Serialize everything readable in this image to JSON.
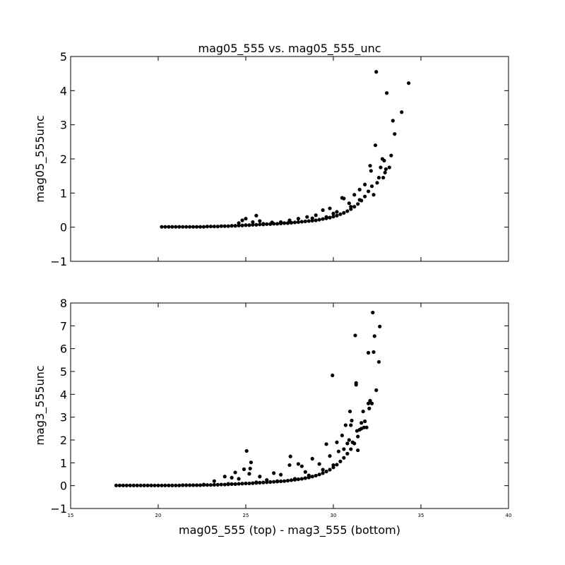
{
  "chart_data": [
    {
      "type": "scatter",
      "title": "mag05_555 vs. mag05_555_unc",
      "ylabel": "mag05_555unc",
      "xlim": [
        15,
        40
      ],
      "ylim": [
        -1,
        5
      ],
      "yticks": [
        "−1",
        "0",
        "1",
        "2",
        "3",
        "4",
        "5"
      ],
      "ytick_values": [
        -1,
        0,
        1,
        2,
        3,
        4,
        5
      ],
      "show_xtick_labels": false,
      "xtick_values": [
        15,
        20,
        25,
        30,
        35,
        40
      ],
      "grid": false,
      "marker_color": "#000000",
      "points": [
        [
          20.2,
          0.01
        ],
        [
          20.4,
          0.01
        ],
        [
          20.6,
          0.01
        ],
        [
          20.8,
          0.01
        ],
        [
          21.0,
          0.01
        ],
        [
          21.2,
          0.01
        ],
        [
          21.4,
          0.01
        ],
        [
          21.6,
          0.01
        ],
        [
          21.8,
          0.01
        ],
        [
          22.0,
          0.01
        ],
        [
          22.2,
          0.01
        ],
        [
          22.4,
          0.01
        ],
        [
          22.6,
          0.01
        ],
        [
          22.8,
          0.02
        ],
        [
          23.0,
          0.02
        ],
        [
          23.2,
          0.02
        ],
        [
          23.4,
          0.02
        ],
        [
          23.6,
          0.03
        ],
        [
          23.8,
          0.03
        ],
        [
          24.0,
          0.03
        ],
        [
          24.2,
          0.04
        ],
        [
          24.4,
          0.04
        ],
        [
          24.6,
          0.05
        ],
        [
          24.8,
          0.05
        ],
        [
          25.0,
          0.06
        ],
        [
          25.2,
          0.06
        ],
        [
          25.4,
          0.07
        ],
        [
          25.6,
          0.07
        ],
        [
          25.8,
          0.08
        ],
        [
          26.0,
          0.08
        ],
        [
          26.2,
          0.09
        ],
        [
          26.4,
          0.09
        ],
        [
          26.6,
          0.1
        ],
        [
          26.8,
          0.1
        ],
        [
          27.0,
          0.11
        ],
        [
          27.2,
          0.12
        ],
        [
          27.4,
          0.12
        ],
        [
          27.6,
          0.13
        ],
        [
          27.8,
          0.14
        ],
        [
          28.0,
          0.15
        ],
        [
          28.2,
          0.16
        ],
        [
          28.4,
          0.17
        ],
        [
          28.6,
          0.18
        ],
        [
          28.8,
          0.19
        ],
        [
          29.0,
          0.2
        ],
        [
          29.2,
          0.22
        ],
        [
          29.4,
          0.24
        ],
        [
          29.6,
          0.26
        ],
        [
          29.8,
          0.28
        ],
        [
          30.0,
          0.31
        ],
        [
          30.2,
          0.34
        ],
        [
          30.4,
          0.38
        ],
        [
          30.6,
          0.42
        ],
        [
          30.8,
          0.47
        ],
        [
          31.0,
          0.53
        ],
        [
          31.2,
          0.6
        ],
        [
          31.4,
          0.68
        ],
        [
          31.6,
          0.78
        ],
        [
          31.8,
          0.9
        ],
        [
          32.0,
          1.05
        ],
        [
          24.6,
          0.12
        ],
        [
          24.8,
          0.2
        ],
        [
          25.0,
          0.25
        ],
        [
          25.4,
          0.15
        ],
        [
          25.6,
          0.34
        ],
        [
          25.8,
          0.18
        ],
        [
          26.5,
          0.14
        ],
        [
          27.5,
          0.2
        ],
        [
          28.0,
          0.25
        ],
        [
          28.5,
          0.3
        ],
        [
          29.0,
          0.35
        ],
        [
          29.4,
          0.5
        ],
        [
          29.8,
          0.55
        ],
        [
          30.2,
          0.45
        ],
        [
          30.5,
          0.86
        ],
        [
          30.6,
          0.84
        ],
        [
          30.9,
          0.7
        ],
        [
          31.2,
          0.95
        ],
        [
          31.5,
          1.1
        ],
        [
          31.8,
          1.25
        ],
        [
          32.1,
          1.8
        ],
        [
          32.15,
          1.65
        ],
        [
          32.2,
          1.2
        ],
        [
          32.3,
          0.95
        ],
        [
          32.4,
          2.4
        ],
        [
          32.5,
          1.3
        ],
        [
          32.6,
          1.45
        ],
        [
          32.7,
          1.75
        ],
        [
          32.8,
          2.0
        ],
        [
          32.9,
          1.95
        ],
        [
          32.85,
          1.45
        ],
        [
          32.95,
          1.6
        ],
        [
          33.0,
          1.7
        ],
        [
          33.2,
          1.75
        ],
        [
          33.3,
          2.1
        ],
        [
          33.4,
          3.12
        ],
        [
          33.5,
          2.73
        ],
        [
          33.9,
          3.37
        ],
        [
          33.05,
          3.93
        ],
        [
          32.45,
          4.55
        ],
        [
          34.3,
          4.22
        ],
        [
          31.5,
          0.8
        ],
        [
          31.0,
          0.6
        ],
        [
          30.0,
          0.4
        ],
        [
          29.6,
          0.3
        ],
        [
          28.8,
          0.26
        ],
        [
          27.0,
          0.15
        ],
        [
          26.0,
          0.1
        ]
      ]
    },
    {
      "type": "scatter",
      "title": "",
      "xlabel": "mag05_555 (top) - mag3_555 (bottom)",
      "ylabel": "mag3_555unc",
      "xlim": [
        15,
        40
      ],
      "ylim": [
        -1,
        8
      ],
      "xticks": [
        "15",
        "20",
        "25",
        "30",
        "35",
        "40"
      ],
      "xtick_values": [
        15,
        20,
        25,
        30,
        35,
        40
      ],
      "yticks": [
        "−1",
        "0",
        "1",
        "2",
        "3",
        "4",
        "5",
        "6",
        "7",
        "8"
      ],
      "ytick_values": [
        -1,
        0,
        1,
        2,
        3,
        4,
        5,
        6,
        7,
        8
      ],
      "grid": false,
      "marker_color": "#000000",
      "points": [
        [
          17.6,
          0.01
        ],
        [
          17.8,
          0.01
        ],
        [
          18.0,
          0.01
        ],
        [
          18.2,
          0.01
        ],
        [
          18.4,
          0.01
        ],
        [
          18.6,
          0.01
        ],
        [
          18.8,
          0.01
        ],
        [
          19.0,
          0.01
        ],
        [
          19.2,
          0.01
        ],
        [
          19.4,
          0.01
        ],
        [
          19.6,
          0.01
        ],
        [
          19.8,
          0.01
        ],
        [
          20.0,
          0.01
        ],
        [
          20.2,
          0.01
        ],
        [
          20.4,
          0.01
        ],
        [
          20.6,
          0.01
        ],
        [
          20.8,
          0.01
        ],
        [
          21.0,
          0.01
        ],
        [
          21.2,
          0.01
        ],
        [
          21.4,
          0.02
        ],
        [
          21.6,
          0.02
        ],
        [
          21.8,
          0.02
        ],
        [
          22.0,
          0.02
        ],
        [
          22.2,
          0.02
        ],
        [
          22.4,
          0.02
        ],
        [
          22.6,
          0.03
        ],
        [
          22.8,
          0.03
        ],
        [
          23.0,
          0.03
        ],
        [
          23.2,
          0.04
        ],
        [
          23.4,
          0.04
        ],
        [
          23.6,
          0.05
        ],
        [
          23.8,
          0.05
        ],
        [
          24.0,
          0.06
        ],
        [
          24.2,
          0.07
        ],
        [
          24.4,
          0.07
        ],
        [
          24.6,
          0.08
        ],
        [
          24.8,
          0.09
        ],
        [
          25.0,
          0.1
        ],
        [
          25.2,
          0.1
        ],
        [
          25.4,
          0.11
        ],
        [
          25.6,
          0.12
        ],
        [
          25.8,
          0.13
        ],
        [
          26.0,
          0.14
        ],
        [
          26.2,
          0.15
        ],
        [
          26.4,
          0.16
        ],
        [
          26.6,
          0.17
        ],
        [
          26.8,
          0.18
        ],
        [
          27.0,
          0.19
        ],
        [
          27.2,
          0.2
        ],
        [
          27.4,
          0.22
        ],
        [
          27.6,
          0.24
        ],
        [
          27.8,
          0.26
        ],
        [
          28.0,
          0.28
        ],
        [
          28.2,
          0.3
        ],
        [
          28.4,
          0.33
        ],
        [
          28.6,
          0.36
        ],
        [
          28.8,
          0.4
        ],
        [
          29.0,
          0.44
        ],
        [
          29.2,
          0.49
        ],
        [
          29.4,
          0.55
        ],
        [
          29.6,
          0.62
        ],
        [
          29.8,
          0.7
        ],
        [
          30.0,
          0.8
        ],
        [
          30.2,
          0.92
        ],
        [
          30.4,
          1.06
        ],
        [
          30.6,
          1.22
        ],
        [
          30.8,
          1.4
        ],
        [
          31.0,
          1.6
        ],
        [
          31.2,
          1.85
        ],
        [
          31.4,
          2.15
        ],
        [
          23.2,
          0.2
        ],
        [
          23.8,
          0.4
        ],
        [
          24.2,
          0.35
        ],
        [
          24.4,
          0.58
        ],
        [
          24.6,
          0.3
        ],
        [
          24.9,
          0.72
        ],
        [
          25.05,
          1.52
        ],
        [
          25.2,
          0.52
        ],
        [
          25.25,
          0.75
        ],
        [
          25.3,
          1.02
        ],
        [
          25.8,
          0.4
        ],
        [
          26.2,
          0.25
        ],
        [
          26.6,
          0.55
        ],
        [
          27.0,
          0.48
        ],
        [
          27.5,
          0.9
        ],
        [
          27.55,
          1.28
        ],
        [
          28.0,
          0.95
        ],
        [
          28.2,
          0.85
        ],
        [
          28.4,
          0.6
        ],
        [
          28.8,
          1.18
        ],
        [
          29.2,
          0.95
        ],
        [
          29.6,
          1.82
        ],
        [
          29.8,
          1.3
        ],
        [
          29.95,
          4.83
        ],
        [
          30.2,
          1.9
        ],
        [
          30.3,
          1.5
        ],
        [
          30.5,
          2.2
        ],
        [
          30.7,
          2.65
        ],
        [
          30.8,
          1.85
        ],
        [
          30.9,
          2.0
        ],
        [
          30.95,
          3.25
        ],
        [
          31.0,
          2.65
        ],
        [
          31.05,
          2.85
        ],
        [
          31.25,
          6.58
        ],
        [
          31.3,
          4.5
        ],
        [
          31.3,
          4.42
        ],
        [
          31.35,
          2.4
        ],
        [
          31.4,
          1.55
        ],
        [
          31.5,
          2.45
        ],
        [
          31.6,
          2.75
        ],
        [
          31.7,
          3.25
        ],
        [
          31.75,
          2.55
        ],
        [
          31.8,
          2.82
        ],
        [
          31.9,
          2.55
        ],
        [
          32.0,
          3.6
        ],
        [
          32.05,
          3.38
        ],
        [
          32.1,
          3.72
        ],
        [
          32.2,
          3.6
        ],
        [
          32.0,
          5.82
        ],
        [
          32.25,
          7.58
        ],
        [
          32.3,
          5.85
        ],
        [
          32.35,
          6.55
        ],
        [
          32.45,
          4.18
        ],
        [
          32.6,
          5.42
        ],
        [
          32.65,
          6.97
        ],
        [
          31.6,
          2.5
        ],
        [
          31.1,
          1.9
        ],
        [
          30.6,
          1.6
        ],
        [
          30.0,
          0.9
        ],
        [
          29.4,
          0.7
        ],
        [
          28.6,
          0.45
        ],
        [
          27.8,
          0.3
        ],
        [
          26.8,
          0.2
        ],
        [
          25.6,
          0.15
        ],
        [
          24.0,
          0.08
        ],
        [
          22.6,
          0.05
        ]
      ]
    }
  ]
}
